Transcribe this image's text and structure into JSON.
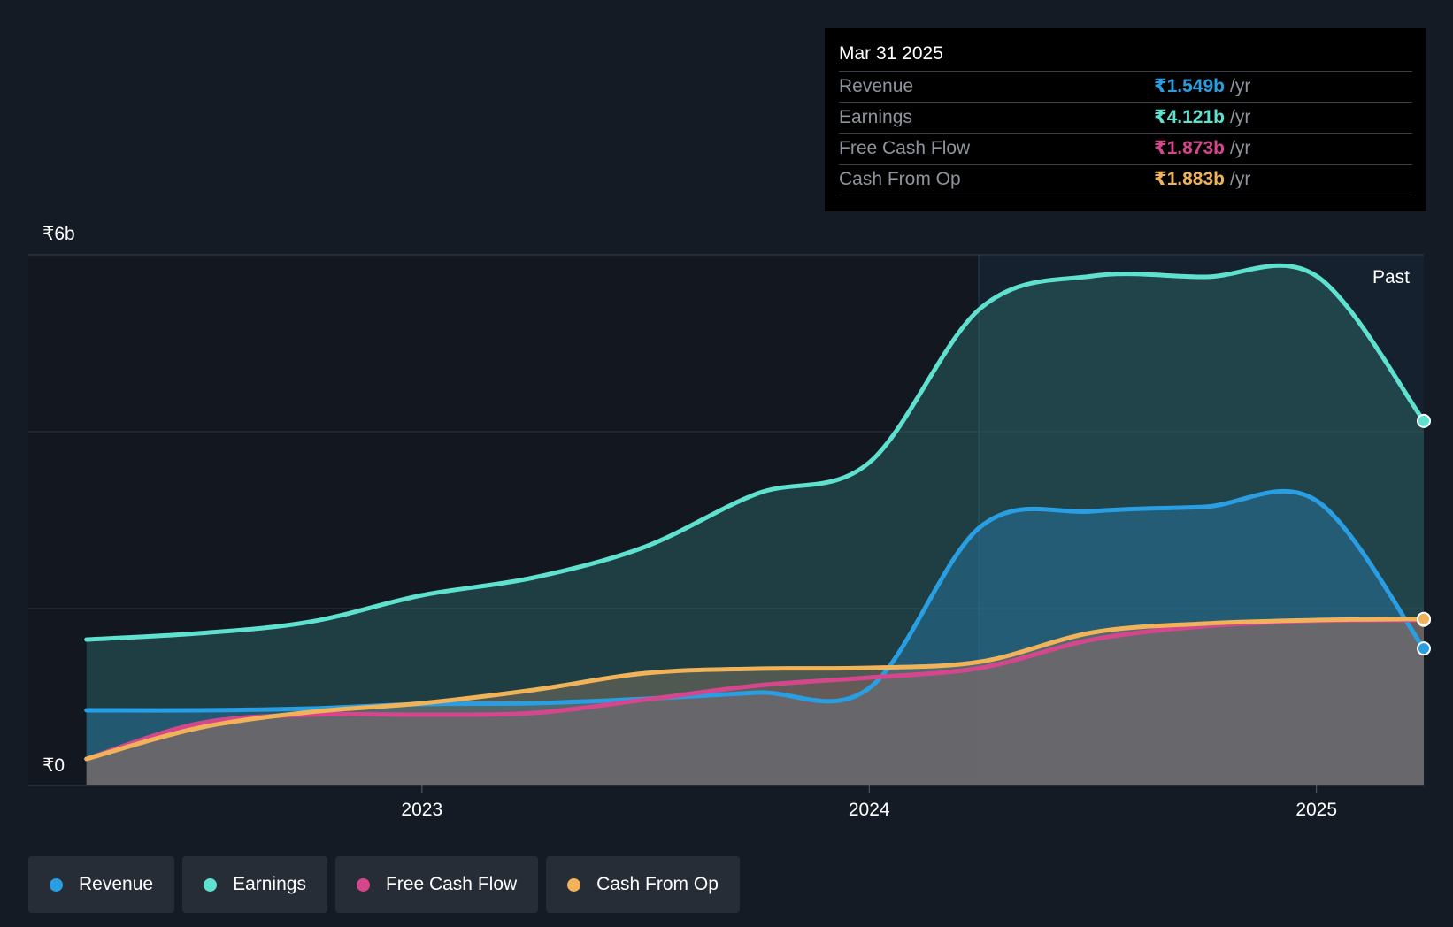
{
  "chart_data": {
    "type": "area",
    "title": "",
    "y_axis": {
      "top_label": "₹6b",
      "bottom_label": "₹0",
      "ylim": [
        0,
        6
      ],
      "unit": "₹b"
    },
    "x_axis": {
      "ticks": [
        {
          "label": "2023",
          "value": 2023.0
        },
        {
          "label": "2024",
          "value": 2024.0
        },
        {
          "label": "2025",
          "value": 2025.0
        }
      ],
      "xlim": [
        2022.12,
        2025.24
      ]
    },
    "past_label": "Past",
    "past_region_start": 2024.245,
    "series": [
      {
        "name": "Earnings",
        "color": "#5ee1cf",
        "points": [
          [
            2022.25,
            1.65
          ],
          [
            2022.5,
            1.72
          ],
          [
            2022.75,
            1.85
          ],
          [
            2023.0,
            2.15
          ],
          [
            2023.25,
            2.35
          ],
          [
            2023.5,
            2.7
          ],
          [
            2023.75,
            3.3
          ],
          [
            2024.0,
            3.65
          ],
          [
            2024.25,
            5.4
          ],
          [
            2024.5,
            5.76
          ],
          [
            2024.75,
            5.75
          ],
          [
            2025.0,
            5.76
          ],
          [
            2025.24,
            4.121
          ]
        ]
      },
      {
        "name": "Revenue",
        "color": "#2a9ee3",
        "points": [
          [
            2022.25,
            0.85
          ],
          [
            2022.5,
            0.85
          ],
          [
            2022.75,
            0.87
          ],
          [
            2023.0,
            0.92
          ],
          [
            2023.25,
            0.93
          ],
          [
            2023.5,
            0.98
          ],
          [
            2023.75,
            1.05
          ],
          [
            2024.0,
            1.1
          ],
          [
            2024.25,
            2.93
          ],
          [
            2024.5,
            3.1
          ],
          [
            2024.75,
            3.15
          ],
          [
            2025.0,
            3.22
          ],
          [
            2025.24,
            1.549
          ]
        ]
      },
      {
        "name": "Free Cash Flow",
        "color": "#d4478d",
        "points": [
          [
            2022.25,
            0.3
          ],
          [
            2022.5,
            0.7
          ],
          [
            2022.75,
            0.8
          ],
          [
            2023.0,
            0.8
          ],
          [
            2023.25,
            0.82
          ],
          [
            2023.5,
            0.97
          ],
          [
            2023.75,
            1.13
          ],
          [
            2024.0,
            1.22
          ],
          [
            2024.25,
            1.33
          ],
          [
            2024.5,
            1.65
          ],
          [
            2024.75,
            1.8
          ],
          [
            2025.0,
            1.86
          ],
          [
            2025.24,
            1.873
          ]
        ]
      },
      {
        "name": "Cash From Op",
        "color": "#f0b35a",
        "points": [
          [
            2022.25,
            0.3
          ],
          [
            2022.5,
            0.65
          ],
          [
            2022.75,
            0.83
          ],
          [
            2023.0,
            0.93
          ],
          [
            2023.25,
            1.08
          ],
          [
            2023.5,
            1.27
          ],
          [
            2023.75,
            1.32
          ],
          [
            2024.0,
            1.33
          ],
          [
            2024.25,
            1.4
          ],
          [
            2024.5,
            1.73
          ],
          [
            2024.75,
            1.83
          ],
          [
            2025.0,
            1.87
          ],
          [
            2025.24,
            1.883
          ]
        ]
      }
    ]
  },
  "tooltip": {
    "date": "Mar 31 2025",
    "unit": "/yr",
    "rows": [
      {
        "label": "Revenue",
        "value": "₹1.549b",
        "color": "#2a9ee3"
      },
      {
        "label": "Earnings",
        "value": "₹4.121b",
        "color": "#5ee1cf"
      },
      {
        "label": "Free Cash Flow",
        "value": "₹1.873b",
        "color": "#d4478d"
      },
      {
        "label": "Cash From Op",
        "value": "₹1.883b",
        "color": "#f0b35a"
      }
    ]
  },
  "legend": [
    {
      "label": "Revenue",
      "color": "#2a9ee3"
    },
    {
      "label": "Earnings",
      "color": "#5ee1cf"
    },
    {
      "label": "Free Cash Flow",
      "color": "#d4478d"
    },
    {
      "label": "Cash From Op",
      "color": "#f0b35a"
    }
  ]
}
